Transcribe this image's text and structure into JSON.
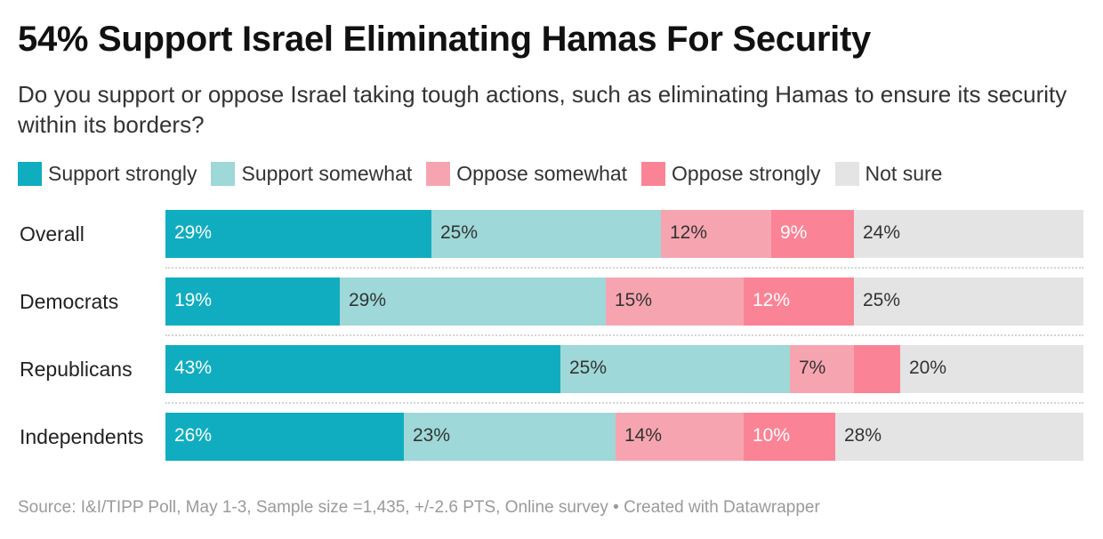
{
  "chart_data": {
    "type": "bar",
    "orientation": "horizontal-stacked",
    "title": "54% Support Israel Eliminating Hamas For Security",
    "subtitle": "Do you support or oppose Israel taking tough actions, such as eliminating Hamas to ensure its security within its borders?",
    "categories": [
      "Overall",
      "Democrats",
      "Republicans",
      "Independents"
    ],
    "series": [
      {
        "name": "Support strongly",
        "color": "#10adc0",
        "label_color": "#ffffff",
        "values": [
          29,
          19,
          43,
          26
        ],
        "labels": [
          "29%",
          "19%",
          "43%",
          "26%"
        ]
      },
      {
        "name": "Support somewhat",
        "color": "#9ed8d8",
        "label_color": "#333333",
        "values": [
          25,
          29,
          25,
          23
        ],
        "labels": [
          "25%",
          "29%",
          "25%",
          "23%"
        ]
      },
      {
        "name": "Oppose somewhat",
        "color": "#f6a5b0",
        "label_color": "#333333",
        "values": [
          12,
          15,
          7,
          14
        ],
        "labels": [
          "12%",
          "15%",
          "7%",
          "14%"
        ]
      },
      {
        "name": "Oppose strongly",
        "color": "#fb8396",
        "label_color": "#ffffff",
        "values": [
          9,
          12,
          5,
          10
        ],
        "labels": [
          "9%",
          "12%",
          "",
          "10%"
        ]
      },
      {
        "name": "Not sure",
        "color": "#e4e4e4",
        "label_color": "#333333",
        "values": [
          24,
          25,
          20,
          28
        ],
        "labels": [
          "24%",
          "25%",
          "20%",
          "28%"
        ]
      }
    ],
    "xlim": [
      0,
      100
    ],
    "source": "Source: I&I/TIPP Poll, May 1-3, Sample size =1,435, +/-2.6 PTS, Online survey • Created with Datawrapper"
  }
}
